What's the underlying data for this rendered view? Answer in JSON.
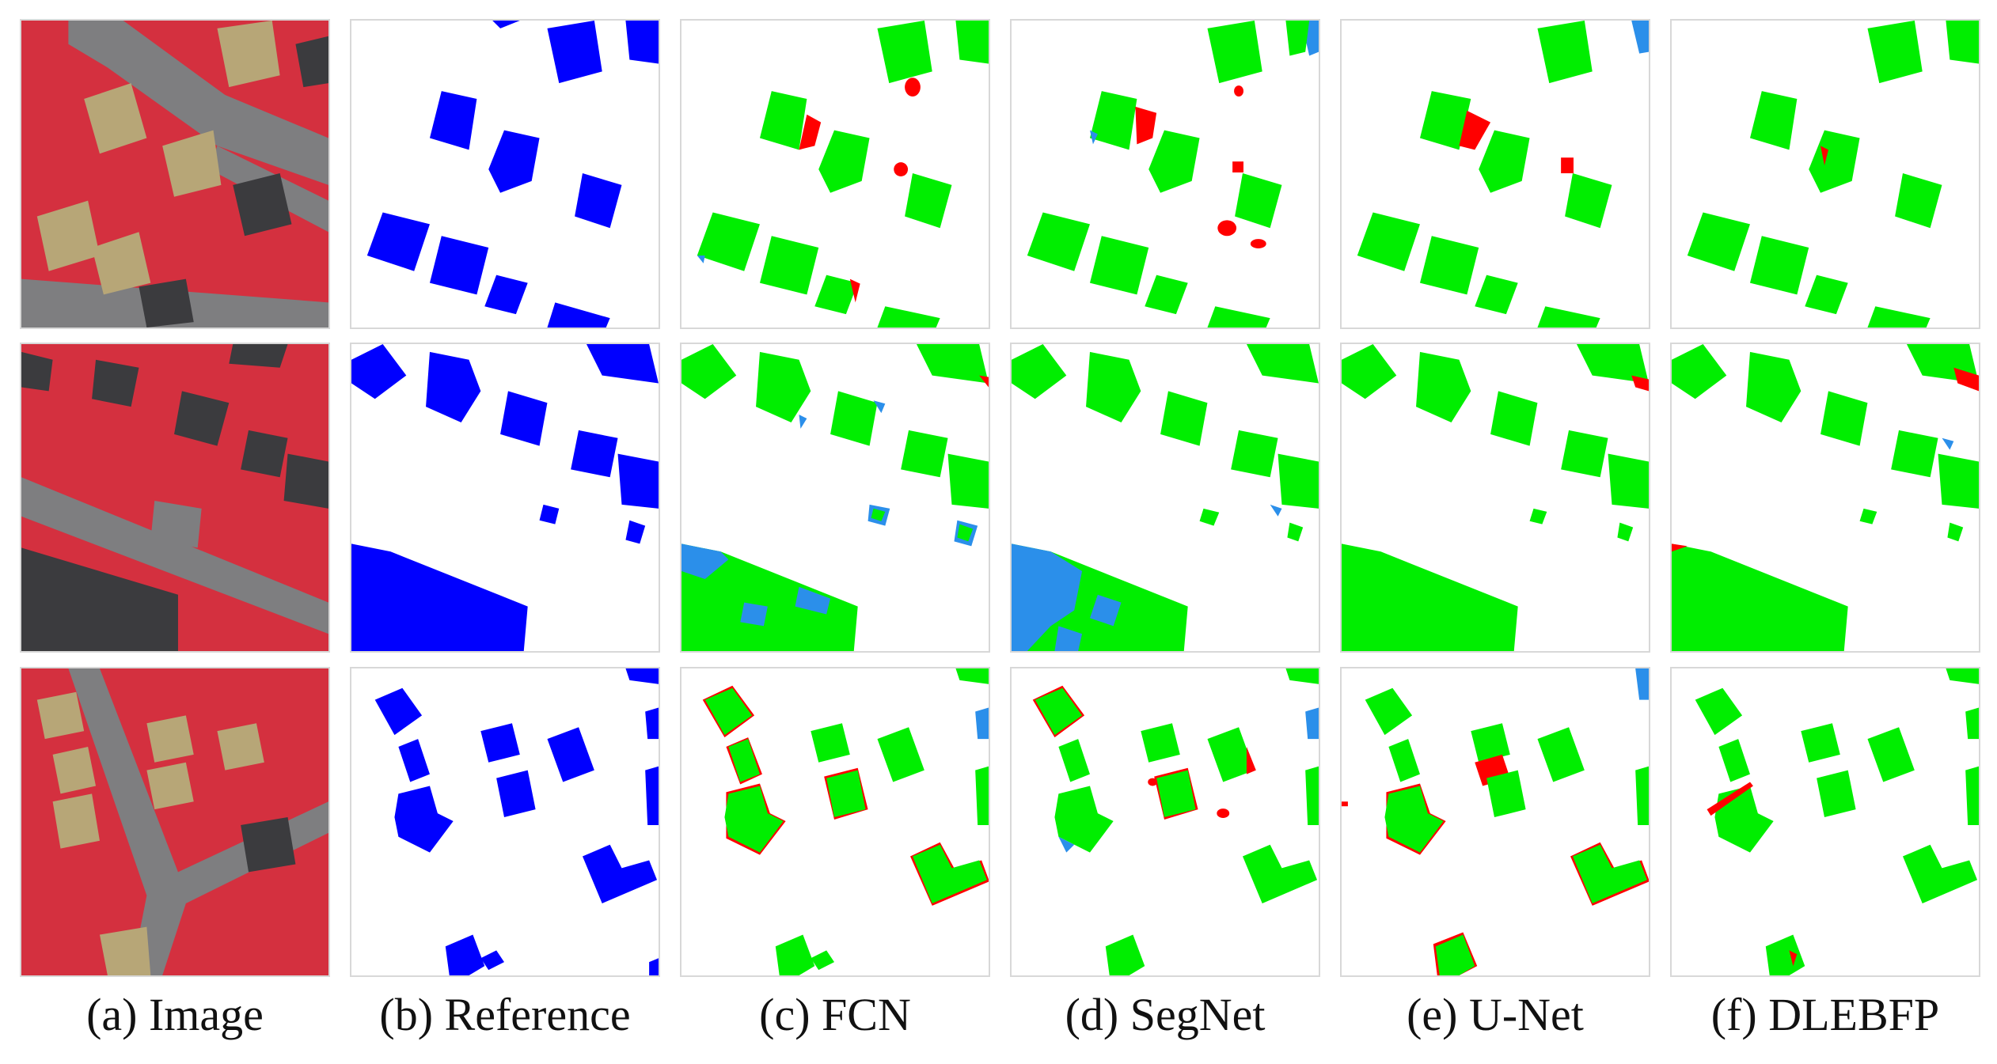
{
  "figure": {
    "captions": [
      "(a) Image",
      "(b) Reference",
      "(c) FCN",
      "(d) SegNet",
      "(e) U-Net",
      "(f) DLEBFP"
    ]
  },
  "legend_colors": {
    "reference_building": "#0000ff",
    "true_positive": "#00ee00",
    "false_positive": "#ff0000",
    "false_negative": "#2b8fea",
    "background": "#ffffff",
    "aerial_vegetation": "#d4303f",
    "aerial_road": "#7e7e80",
    "aerial_roof": "#b7a677",
    "aerial_dark_roof": "#3b3b3e"
  }
}
